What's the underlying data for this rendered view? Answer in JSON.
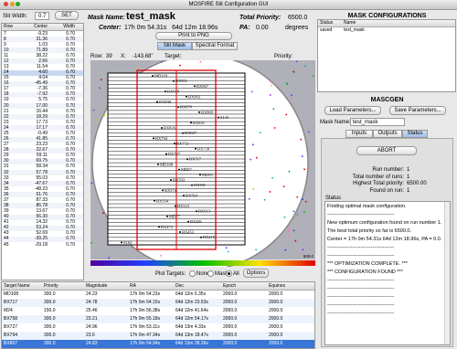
{
  "window_title": "MOSFIRE Slit Configuration GUI",
  "slit_width": {
    "label": "Slit Width:",
    "value": "0.7",
    "button": "SET"
  },
  "slit_table": {
    "columns": [
      "Row",
      "Center",
      "Width"
    ],
    "rows": [
      [
        "7",
        "-9.23",
        "0.70"
      ],
      [
        "8",
        "31.36",
        "0.70"
      ],
      [
        "9",
        "1.03",
        "0.70"
      ],
      [
        "10",
        "71.89",
        "0.70"
      ],
      [
        "11",
        "38.22",
        "0.70"
      ],
      [
        "12",
        "2.66",
        "0.70"
      ],
      [
        "13",
        "11.54",
        "0.70"
      ],
      [
        "14",
        "4.60",
        "0.70"
      ],
      [
        "15",
        "4.04",
        "0.70"
      ],
      [
        "16",
        "-45.49",
        "0.70"
      ],
      [
        "17",
        "-7.36",
        "0.70"
      ],
      [
        "18",
        "-7.92",
        "0.70"
      ],
      [
        "19",
        "5.75",
        "0.70"
      ],
      [
        "20",
        "17.00",
        "0.70"
      ],
      [
        "21",
        "16.44",
        "0.70"
      ],
      [
        "22",
        "18.29",
        "0.70"
      ],
      [
        "23",
        "17.73",
        "0.70"
      ],
      [
        "24",
        "17.17",
        "0.70"
      ],
      [
        "25",
        "-0.49",
        "0.70"
      ],
      [
        "26",
        "41.85",
        "0.70"
      ],
      [
        "27",
        "23.23",
        "0.70"
      ],
      [
        "28",
        "22.67",
        "0.70"
      ],
      [
        "29",
        "59.11",
        "0.70"
      ],
      [
        "30",
        "69.75",
        "0.70"
      ],
      [
        "31",
        "58.34",
        "0.70"
      ],
      [
        "32",
        "57.78",
        "0.70"
      ],
      [
        "33",
        "55.03",
        "0.70"
      ],
      [
        "34",
        "-47.67",
        "0.70"
      ],
      [
        "35",
        "-48.23",
        "0.70"
      ],
      [
        "36",
        "51.76",
        "0.70"
      ],
      [
        "37",
        "87.33",
        "0.70"
      ],
      [
        "38",
        "86.78",
        "0.70"
      ],
      [
        "39",
        "13.67",
        "0.70"
      ],
      [
        "40",
        "56.30",
        "0.70"
      ],
      [
        "41",
        "14.32",
        "0.70"
      ],
      [
        "42",
        "53.24",
        "0.70"
      ],
      [
        "43",
        "52.69",
        "0.70"
      ],
      [
        "44",
        "-39.25",
        "0.70"
      ],
      [
        "45",
        "-29.18",
        "0.70"
      ]
    ]
  },
  "header": {
    "mask_name_label": "Mask Name:",
    "mask_name": "test_mask",
    "total_priority_label": "Total Priority:",
    "total_priority": "6500.0",
    "center_label": "Center:",
    "center": "17h 0m 54.31s   64d 12m 18.96s",
    "pa_label": "PA:",
    "pa": "0.00",
    "pa_unit": "degrees",
    "print_button": "Print to PNG",
    "tabs": [
      "Slit Mask",
      "Spectral Format"
    ]
  },
  "status_row": {
    "row_label": "Row:",
    "row": "39",
    "x_label": "X:",
    "x": "-143.68\"",
    "target_label": "Target:",
    "priority_label": "Priority:"
  },
  "plot": {
    "target_labels": [
      "MD118",
      "BX951",
      "BX967",
      "BX918",
      "BX903",
      "BX898",
      "BX879",
      "BX869",
      "S144",
      "BX831",
      "BX826",
      "BX807",
      "BX794",
      "BX772",
      "BX758",
      "BX727",
      "BX717",
      "MD108",
      "MD97",
      "MD95",
      "BX593",
      "BX581",
      "BX574",
      "BX564",
      "BX554",
      "BX523",
      "BX513",
      "MD77",
      "BX481",
      "BX473",
      "BX453",
      "BX415",
      "S163"
    ],
    "scale_max": "500.0"
  },
  "plot_targets": {
    "label": "Plot Targets:",
    "options": [
      "None",
      "Mask",
      "All"
    ],
    "button": "Options"
  },
  "target_table": {
    "columns": [
      "Target Name",
      "Priority",
      "Magnitude",
      "RA",
      "Dec",
      "Epoch",
      "Equinox"
    ],
    "rows": [
      [
        "MD108",
        "300.0",
        "24.23",
        "17h 0m 54.23s",
        "64d 12m 6.35s",
        "2000.0",
        "2000.0"
      ],
      [
        "BX717",
        "300.0",
        "24.78",
        "17h 0m 54.15s",
        "64d 12m 23.53s",
        "2000.0",
        "2000.0"
      ],
      [
        "M24",
        "150.0",
        "25.46",
        "17h 0m 56.38s",
        "64d 12m 41.64s",
        "2000.0",
        "2000.0"
      ],
      [
        "BX758",
        "300.0",
        "23.21",
        "17h 0m 55.18s",
        "64d 12m 54.17s",
        "2000.0",
        "2000.0"
      ],
      [
        "BX727",
        "300.0",
        "24.96",
        "17h 0m 53.11s",
        "64d 13m 4.33s",
        "2000.0",
        "2000.0"
      ],
      [
        "BX794",
        "300.0",
        "23.6",
        "17h 0m 47.34s",
        "64d 13m 18.47s",
        "2000.0",
        "2000.0"
      ],
      [
        "BX807",
        "300.0",
        "24.83",
        "17h 0m 54.94s",
        "64d 13m 28.36s",
        "2000.0",
        "2000.0"
      ]
    ]
  },
  "mask_configurations": {
    "title": "MASK CONFIGURATIONS",
    "columns": [
      "Status",
      "Name"
    ],
    "rows": [
      [
        "saved",
        "test_mask"
      ]
    ]
  },
  "mascgen": {
    "title": "MASCGEN",
    "load_button": "Load Parameters...",
    "save_button": "Save Parameters...",
    "mask_name_label": "Mask Name:",
    "mask_name": "test_mask",
    "tabs": [
      "Inputs",
      "Outputs",
      "Status"
    ],
    "abort_button": "ABORT",
    "results": [
      [
        "Run number:",
        "1"
      ],
      [
        "Total number of runs:",
        "1"
      ],
      [
        "Highest Total priority:",
        "6500.00"
      ],
      [
        "Found on run:",
        "1"
      ]
    ],
    "status_label": "Status",
    "status_lines": [
      "Finding optimal mask configuration.",
      "----------------------------------------",
      "New optimum configuration found on run number 1.",
      "The best total priority so far is 6500.0.",
      "Center = 17h 0m 54.31s 64d 12m 18.96s, PA = 0.0.",
      "----------------------------------------",
      "----------------------------------------",
      "*** OPTIMIZATION COMPLETE. ***",
      "*** CONFIGURATION FOUND ***",
      "----------------------------------------",
      "----------------------------------------",
      "----------------------------------------",
      "----------------------------------------",
      "----------------------------------------"
    ]
  }
}
